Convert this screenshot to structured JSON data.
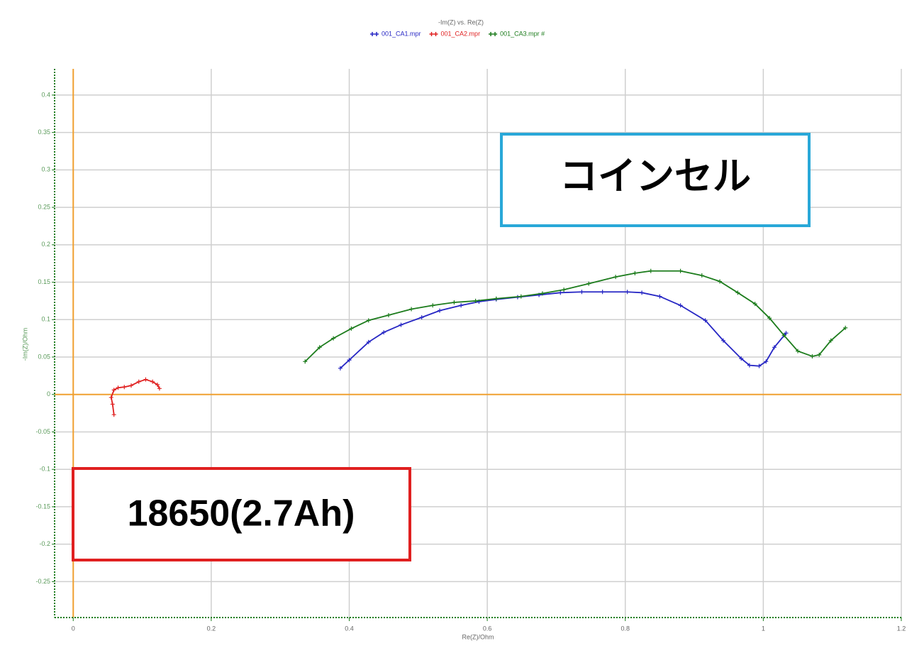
{
  "chart_data": {
    "type": "scatter",
    "title": "-Im(Z) vs. Re(Z)",
    "xlabel": "Re(Z)/Ohm",
    "ylabel": "-Im(Z)/Ohm",
    "xlim": [
      -0.027,
      1.2
    ],
    "ylim": [
      -0.298,
      0.435
    ],
    "xticks": [
      0,
      0.2,
      0.4,
      0.6,
      0.8,
      1,
      1.2
    ],
    "yticks": [
      -0.25,
      -0.2,
      -0.15,
      -0.1,
      -0.05,
      0,
      0.05,
      0.1,
      0.15,
      0.2,
      0.25,
      0.3,
      0.35,
      0.4
    ],
    "grid": true,
    "legend": "top",
    "annotations": [
      "コインセル",
      "18650(2.7Ah)"
    ],
    "series": [
      {
        "name": "001_CA1.mpr",
        "color": "#2626c4",
        "x": [
          0.387,
          0.4,
          0.428,
          0.45,
          0.475,
          0.505,
          0.531,
          0.562,
          0.588,
          0.613,
          0.644,
          0.675,
          0.706,
          0.737,
          0.767,
          0.803,
          0.824,
          0.85,
          0.88,
          0.916,
          0.942,
          0.968,
          0.98,
          0.994,
          1.004,
          1.016,
          1.033
        ],
        "values": [
          0.035,
          0.046,
          0.07,
          0.083,
          0.093,
          0.103,
          0.112,
          0.119,
          0.124,
          0.127,
          0.13,
          0.133,
          0.136,
          0.137,
          0.137,
          0.137,
          0.136,
          0.131,
          0.119,
          0.099,
          0.072,
          0.048,
          0.039,
          0.038,
          0.044,
          0.063,
          0.082
        ]
      },
      {
        "name": "001_CA2.mpr",
        "color": "#e02020",
        "x": [
          0.059,
          0.057,
          0.055,
          0.059,
          0.065,
          0.074,
          0.084,
          0.095,
          0.105,
          0.115,
          0.122,
          0.125
        ],
        "values": [
          -0.027,
          -0.013,
          -0.004,
          0.006,
          0.009,
          0.01,
          0.012,
          0.017,
          0.02,
          0.017,
          0.013,
          0.008
        ]
      },
      {
        "name": "001_CA3.mpr #",
        "color": "#1c7c1c",
        "x": [
          0.336,
          0.357,
          0.377,
          0.403,
          0.428,
          0.457,
          0.49,
          0.521,
          0.552,
          0.583,
          0.613,
          0.649,
          0.68,
          0.711,
          0.747,
          0.786,
          0.814,
          0.837,
          0.88,
          0.911,
          0.937,
          0.963,
          0.988,
          1.009,
          1.03,
          1.05,
          1.071,
          1.081,
          1.098,
          1.119
        ],
        "values": [
          0.044,
          0.063,
          0.075,
          0.088,
          0.099,
          0.106,
          0.114,
          0.119,
          0.123,
          0.125,
          0.128,
          0.131,
          0.135,
          0.14,
          0.148,
          0.157,
          0.162,
          0.165,
          0.165,
          0.159,
          0.151,
          0.136,
          0.121,
          0.102,
          0.079,
          0.058,
          0.051,
          0.053,
          0.072,
          0.089
        ]
      }
    ]
  }
}
